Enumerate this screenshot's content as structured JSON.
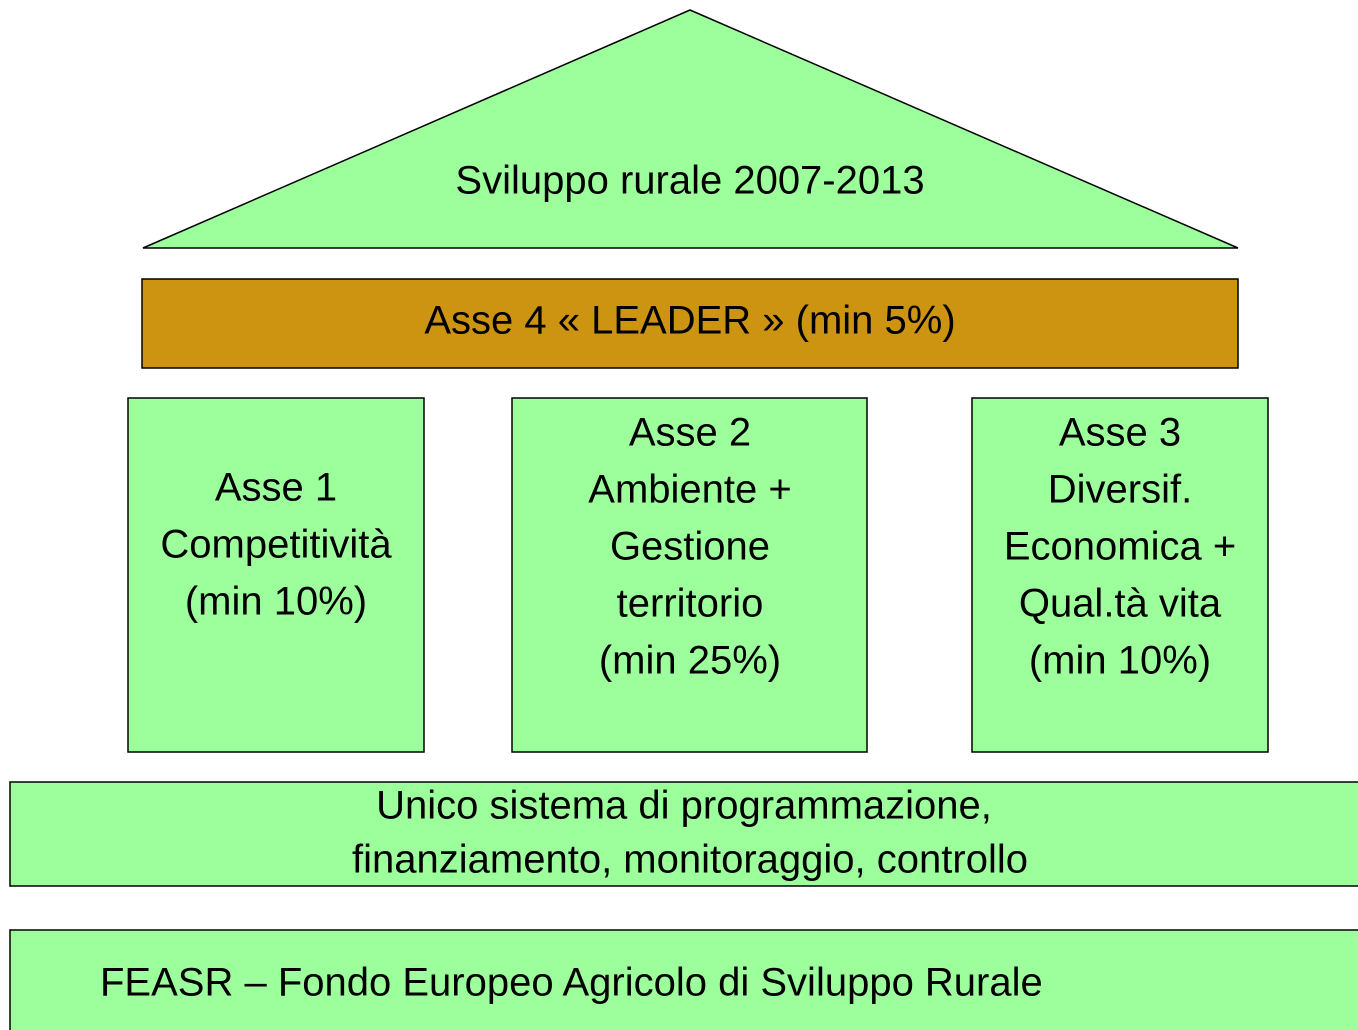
{
  "roof": {
    "title": "Sviluppo rurale 2007-2013"
  },
  "leader": {
    "label": "Asse 4 « LEADER »  (min 5%)"
  },
  "pillars": [
    {
      "lines": [
        "Asse 1",
        "Competitività",
        "(min 10%)"
      ]
    },
    {
      "lines": [
        "Asse 2",
        "Ambiente +",
        "Gestione",
        "territorio",
        "(min 25%)"
      ]
    },
    {
      "lines": [
        "Asse 3",
        "Diversif.",
        "Economica +",
        "Qual.tà vita",
        "(min 10%)"
      ]
    }
  ],
  "base": {
    "lines": [
      "Unico sistema di programmazione,",
      "finanziamento, monitoraggio, controllo"
    ]
  },
  "fund": {
    "label": "FEASR – Fondo Europeo Agricolo di Sviluppo Rurale"
  }
}
